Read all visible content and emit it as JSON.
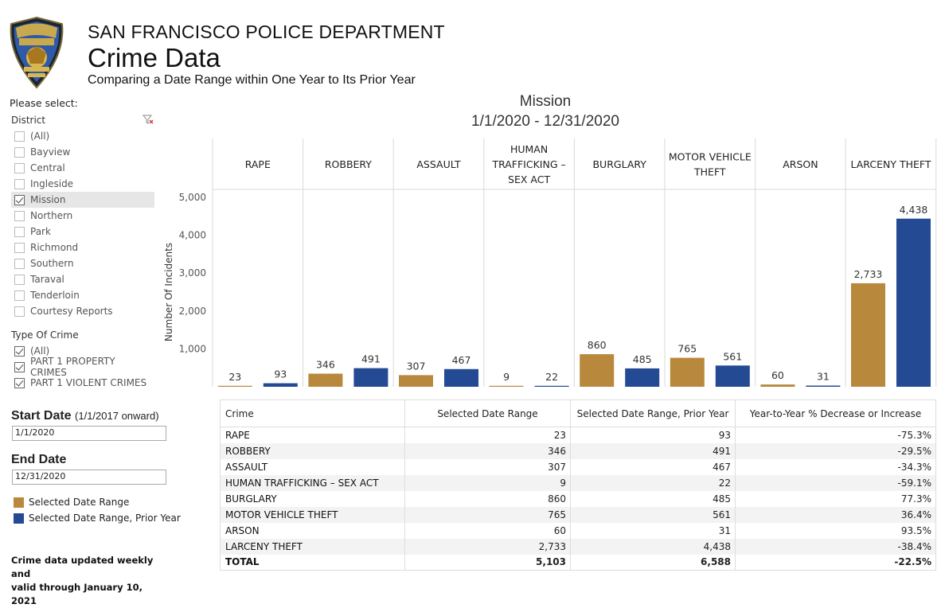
{
  "header": {
    "department": "SAN FRANCISCO POLICE DEPARTMENT",
    "title": "Crime Data",
    "subtitle": "Comparing a Date Range within One Year to Its Prior Year",
    "badge_text": [
      "SAN FRANCISCO",
      "POLICE",
      "ORO EN PAZ",
      "FIERRO EN GUERRA"
    ]
  },
  "sidebar": {
    "please_select": "Please select:",
    "district_label": "District",
    "districts": [
      {
        "label": "(All)",
        "checked": false
      },
      {
        "label": "Bayview",
        "checked": false
      },
      {
        "label": "Central",
        "checked": false
      },
      {
        "label": "Ingleside",
        "checked": false
      },
      {
        "label": "Mission",
        "checked": true
      },
      {
        "label": "Northern",
        "checked": false
      },
      {
        "label": "Park",
        "checked": false
      },
      {
        "label": "Richmond",
        "checked": false
      },
      {
        "label": "Southern",
        "checked": false
      },
      {
        "label": "Taraval",
        "checked": false
      },
      {
        "label": "Tenderloin",
        "checked": false
      },
      {
        "label": "Courtesy Reports",
        "checked": false
      }
    ],
    "type_label": "Type Of Crime",
    "types": [
      {
        "label": "(All)",
        "checked": true
      },
      {
        "label": "PART 1 PROPERTY CRIMES",
        "checked": true
      },
      {
        "label": "PART 1 VIOLENT CRIMES",
        "checked": true
      }
    ],
    "start_label": "Start Date",
    "start_note": "(1/1/2017 onward)",
    "start_value": "1/1/2020",
    "end_label": "End Date",
    "end_value": "12/31/2020",
    "legend": [
      {
        "label": "Selected Date Range",
        "color": "#B8893C"
      },
      {
        "label": "Selected Date Range, Prior Year",
        "color": "#234A93"
      }
    ],
    "updated_line1": "Crime data updated weekly and",
    "updated_line2": "valid through January 10, 2021"
  },
  "chart_data": {
    "type": "bar",
    "title": "Mission",
    "subtitle": "1/1/2020 - 12/31/2020",
    "ylabel": "Number Of Incidents",
    "ylim": [
      0,
      5000
    ],
    "yticks": [
      "1,000",
      "2,000",
      "3,000",
      "4,000",
      "5,000"
    ],
    "categories": [
      "RAPE",
      "ROBBERY",
      "ASSAULT",
      "HUMAN TRAFFICKING – SEX ACT",
      "BURGLARY",
      "MOTOR VEHICLE THEFT",
      "ARSON",
      "LARCENY THEFT"
    ],
    "category_lines": [
      [
        "RAPE"
      ],
      [
        "ROBBERY"
      ],
      [
        "ASSAULT"
      ],
      [
        "HUMAN",
        "TRAFFICKING –",
        "SEX ACT"
      ],
      [
        "BURGLARY"
      ],
      [
        "MOTOR VEHICLE",
        "THEFT"
      ],
      [
        "ARSON"
      ],
      [
        "LARCENY THEFT"
      ]
    ],
    "series": [
      {
        "name": "Selected Date Range",
        "color": "#B8893C",
        "values": [
          23,
          346,
          307,
          9,
          860,
          765,
          60,
          2733
        ],
        "labels": [
          "23",
          "346",
          "307",
          "9",
          "860",
          "765",
          "60",
          "2,733"
        ]
      },
      {
        "name": "Selected Date Range, Prior Year",
        "color": "#234A93",
        "values": [
          93,
          491,
          467,
          22,
          485,
          561,
          31,
          4438
        ],
        "labels": [
          "93",
          "491",
          "467",
          "22",
          "485",
          "561",
          "31",
          "4,438"
        ]
      }
    ]
  },
  "table": {
    "headers": [
      "Crime",
      "Selected Date Range",
      "Selected Date Range, Prior Year",
      "Year-to-Year % Decrease or Increase"
    ],
    "rows": [
      [
        "RAPE",
        "23",
        "93",
        "-75.3%"
      ],
      [
        "ROBBERY",
        "346",
        "491",
        "-29.5%"
      ],
      [
        "ASSAULT",
        "307",
        "467",
        "-34.3%"
      ],
      [
        "HUMAN TRAFFICKING – SEX ACT",
        "9",
        "22",
        "-59.1%"
      ],
      [
        "BURGLARY",
        "860",
        "485",
        "77.3%"
      ],
      [
        "MOTOR VEHICLE THEFT",
        "765",
        "561",
        "36.4%"
      ],
      [
        "ARSON",
        "60",
        "31",
        "93.5%"
      ],
      [
        "LARCENY THEFT",
        "2,733",
        "4,438",
        "-38.4%"
      ]
    ],
    "total": [
      "TOTAL",
      "5,103",
      "6,588",
      "-22.5%"
    ]
  }
}
